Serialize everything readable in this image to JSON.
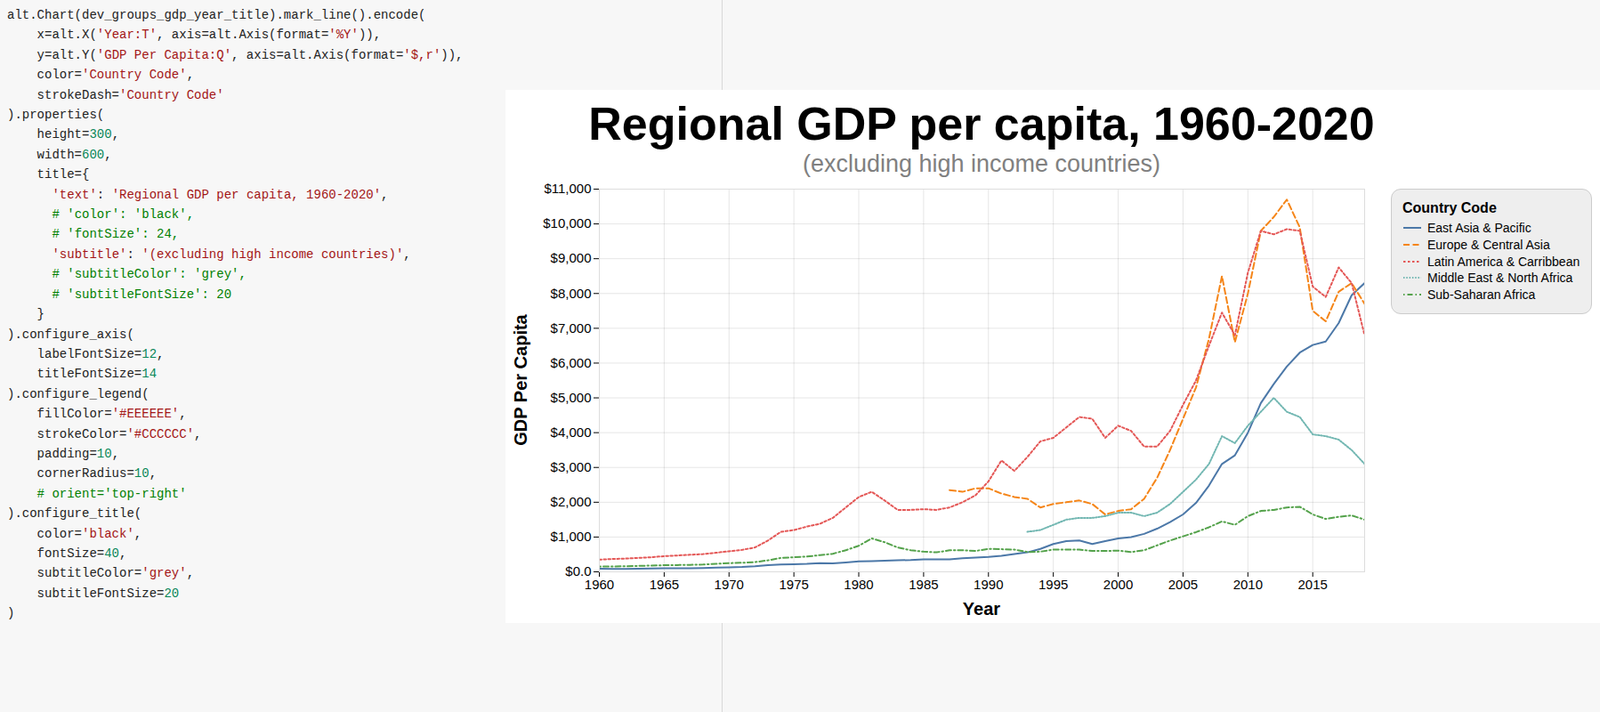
{
  "code": [
    "alt.Chart(dev_groups_gdp_year_title).mark_line().encode(",
    "    x=alt.X('Year:T', axis=alt.Axis(format='%Y')),",
    "    y=alt.Y('GDP Per Capita:Q', axis=alt.Axis(format='$,r')),",
    "    color='Country Code',",
    "    strokeDash='Country Code'",
    ").properties(",
    "    height=300,",
    "    width=600,",
    "    title={",
    "      'text': 'Regional GDP per capita, 1960-2020',",
    "      # 'color': 'black',",
    "      # 'fontSize': 24,",
    "      'subtitle': '(excluding high income countries)',",
    "      # 'subtitleColor': 'grey',",
    "      # 'subtitleFontSize': 20",
    "    }",
    ").configure_axis(",
    "    labelFontSize=12,",
    "    titleFontSize=14",
    ").configure_legend(",
    "    fillColor='#EEEEEE',",
    "    strokeColor='#CCCCCC',",
    "    padding=10,",
    "    cornerRadius=10,",
    "    # orient='top-right'",
    ").configure_title(",
    "    color='black',",
    "    fontSize=40,",
    "    subtitleColor='grey',",
    "    subtitleFontSize=20",
    ")"
  ],
  "chart_data": {
    "type": "line",
    "title": "Regional GDP per capita, 1960-2020",
    "subtitle": "(excluding high income countries)",
    "x_label": "Year",
    "y_label": "GDP Per Capita",
    "legend_title": "Country Code",
    "legend": "right",
    "grid": true,
    "x": [
      1960,
      1961,
      1962,
      1963,
      1964,
      1965,
      1966,
      1967,
      1968,
      1969,
      1970,
      1971,
      1972,
      1973,
      1974,
      1975,
      1976,
      1977,
      1978,
      1979,
      1980,
      1981,
      1982,
      1983,
      1984,
      1985,
      1986,
      1987,
      1988,
      1989,
      1990,
      1991,
      1992,
      1993,
      1994,
      1995,
      1996,
      1997,
      1998,
      1999,
      2000,
      2001,
      2002,
      2003,
      2004,
      2005,
      2006,
      2007,
      2008,
      2009,
      2010,
      2011,
      2012,
      2013,
      2014,
      2015,
      2016,
      2017,
      2018,
      2019
    ],
    "xlim": [
      1960,
      2019
    ],
    "xticks": [
      1960,
      1965,
      1970,
      1975,
      1980,
      1985,
      1990,
      1995,
      2000,
      2005,
      2010,
      2015
    ],
    "ylim": [
      0,
      11000
    ],
    "yticks": [
      {
        "value": 0,
        "label": "$0.0"
      },
      {
        "value": 1000,
        "label": "$1,000"
      },
      {
        "value": 2000,
        "label": "$2,000"
      },
      {
        "value": 3000,
        "label": "$3,000"
      },
      {
        "value": 4000,
        "label": "$4,000"
      },
      {
        "value": 5000,
        "label": "$5,000"
      },
      {
        "value": 6000,
        "label": "$6,000"
      },
      {
        "value": 7000,
        "label": "$7,000"
      },
      {
        "value": 8000,
        "label": "$8,000"
      },
      {
        "value": 9000,
        "label": "$9,000"
      },
      {
        "value": 10000,
        "label": "$10,000"
      },
      {
        "value": 11000,
        "label": "$11,000"
      }
    ],
    "series": [
      {
        "name": "East Asia & Pacific",
        "color": "#4c78a8",
        "line_style": "solid",
        "values": [
          90,
          85,
          85,
          90,
          95,
          100,
          105,
          105,
          110,
          120,
          130,
          140,
          160,
          190,
          210,
          220,
          230,
          250,
          240,
          270,
          300,
          310,
          320,
          330,
          340,
          360,
          360,
          360,
          390,
          410,
          430,
          460,
          510,
          560,
          660,
          800,
          880,
          900,
          800,
          880,
          960,
          1000,
          1090,
          1240,
          1430,
          1650,
          1980,
          2480,
          3100,
          3350,
          4000,
          4850,
          5400,
          5900,
          6300,
          6520,
          6620,
          7150,
          7950,
          8300
        ]
      },
      {
        "name": "Europe & Central Asia",
        "color": "#f58518",
        "line_style": "dashed",
        "values": [
          null,
          null,
          null,
          null,
          null,
          null,
          null,
          null,
          null,
          null,
          null,
          null,
          null,
          null,
          null,
          null,
          null,
          null,
          null,
          null,
          null,
          null,
          null,
          null,
          null,
          null,
          null,
          2350,
          2300,
          2400,
          2400,
          2250,
          2150,
          2100,
          1850,
          1950,
          2000,
          2050,
          1950,
          1650,
          1750,
          1800,
          2100,
          2700,
          3500,
          4400,
          5300,
          6700,
          8500,
          6600,
          8000,
          9800,
          10200,
          10700,
          9900,
          7500,
          7200,
          8050,
          8300,
          7700
        ]
      },
      {
        "name": "Latin America & Carribbean",
        "color": "#e45756",
        "line_style": "dotted",
        "values": [
          350,
          370,
          380,
          400,
          420,
          450,
          470,
          490,
          510,
          550,
          590,
          630,
          700,
          900,
          1150,
          1200,
          1300,
          1380,
          1550,
          1850,
          2150,
          2300,
          2050,
          1780,
          1780,
          1800,
          1780,
          1850,
          2000,
          2200,
          2600,
          3200,
          2900,
          3300,
          3750,
          3850,
          4150,
          4450,
          4400,
          3850,
          4200,
          4050,
          3600,
          3600,
          4050,
          4800,
          5500,
          6500,
          7450,
          6800,
          8600,
          9800,
          9700,
          9850,
          9800,
          8200,
          7900,
          8750,
          8300,
          6800
        ]
      },
      {
        "name": "Middle East & North Africa",
        "color": "#72b7b2",
        "line_style": "densely dotted",
        "values": [
          null,
          null,
          null,
          null,
          null,
          null,
          null,
          null,
          null,
          null,
          null,
          null,
          null,
          null,
          null,
          null,
          null,
          null,
          null,
          null,
          null,
          null,
          null,
          null,
          null,
          null,
          null,
          null,
          null,
          null,
          null,
          null,
          null,
          1150,
          1200,
          1350,
          1500,
          1550,
          1550,
          1600,
          1700,
          1700,
          1600,
          1700,
          1950,
          2300,
          2650,
          3100,
          3900,
          3700,
          4200,
          4600,
          5000,
          4600,
          4450,
          3950,
          3900,
          3800,
          3500,
          3100
        ]
      },
      {
        "name": "Sub-Saharan Africa",
        "color": "#54a24b",
        "line_style": "dashdot",
        "values": [
          150,
          155,
          160,
          170,
          180,
          190,
          195,
          200,
          210,
          230,
          250,
          260,
          280,
          330,
          400,
          420,
          440,
          480,
          520,
          620,
          750,
          960,
          850,
          700,
          620,
          580,
          560,
          620,
          620,
          600,
          660,
          650,
          640,
          570,
          580,
          640,
          640,
          640,
          600,
          600,
          610,
          570,
          620,
          760,
          900,
          1020,
          1140,
          1280,
          1450,
          1350,
          1600,
          1750,
          1780,
          1850,
          1870,
          1650,
          1520,
          1580,
          1620,
          1500
        ]
      }
    ]
  }
}
